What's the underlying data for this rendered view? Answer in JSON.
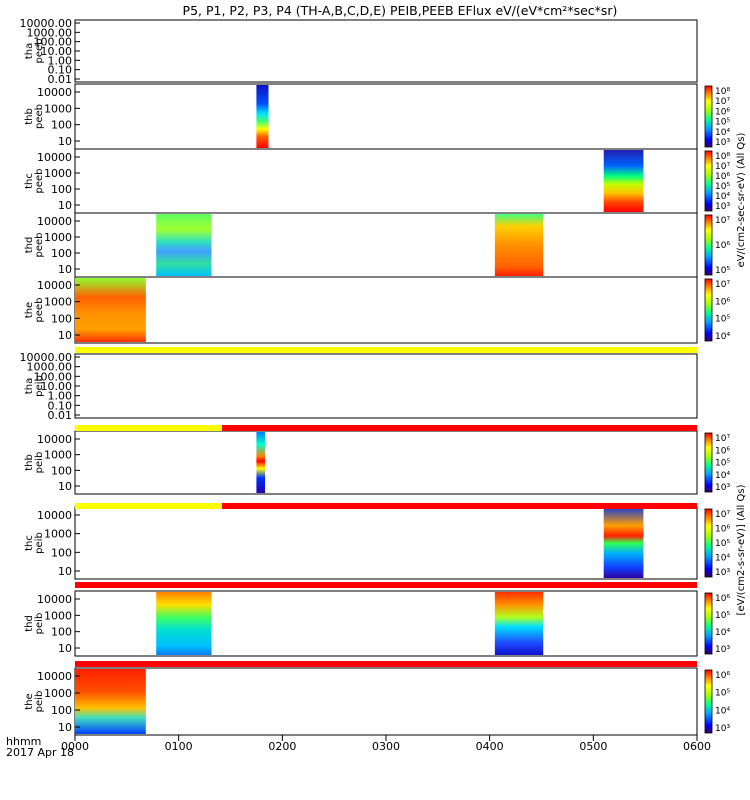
{
  "title": "P5, P1, P2, P3, P4 (TH-A,B,C,D,E) PEIB,PEEB EFlux eV/(eV*cm²*sec*sr)",
  "colorbar_label_top": "eV/(cm2-sec-sr-eV) (All Qs)",
  "colorbar_label_bottom": "[eV/(cm2-s-sr-eV)] (All Qs)",
  "time_axis": {
    "label_line1": "hhmm",
    "label_line2": "2017 Apr 18",
    "ticks": [
      "0000",
      "0100",
      "0200",
      "0300",
      "0400",
      "0500",
      "0600"
    ]
  },
  "chart_data": [
    {
      "type": "heatmap",
      "panel": "tha peeb",
      "probe": "tha",
      "instrument": "peeb",
      "ylabel": "tha\npeeb",
      "scale": "log",
      "yticks": [
        "10000.00",
        "1000.00",
        "100.00",
        "10.00",
        "1.00",
        "0.10",
        "0.01"
      ],
      "blocks": [],
      "colorbar": null
    },
    {
      "type": "heatmap",
      "panel": "thb peeb",
      "probe": "thb",
      "instrument": "peeb",
      "ylabel": "thb\npeeb",
      "scale": "log",
      "yticks": [
        "10000",
        "1000",
        "100",
        "10"
      ],
      "blocks": [
        {
          "start": "0145",
          "end": "0152"
        }
      ],
      "colorbar": [
        "10⁸",
        "10⁷",
        "10⁶",
        "10⁵",
        "10⁴",
        "10³"
      ]
    },
    {
      "type": "heatmap",
      "panel": "thc peeb",
      "probe": "thc",
      "instrument": "peeb",
      "ylabel": "thc\npeeb",
      "scale": "log",
      "yticks": [
        "10000",
        "1000",
        "100",
        "10"
      ],
      "blocks": [
        {
          "start": "0506",
          "end": "0529"
        }
      ],
      "colorbar": [
        "10⁸",
        "10⁷",
        "10⁶",
        "10⁵",
        "10⁴",
        "10³"
      ]
    },
    {
      "type": "heatmap",
      "panel": "thd peeb",
      "probe": "thd",
      "instrument": "peeb",
      "ylabel": "thd\npeeb",
      "scale": "log",
      "yticks": [
        "10000",
        "1000",
        "100",
        "10"
      ],
      "blocks": [
        {
          "start": "0047",
          "end": "0119"
        },
        {
          "start": "0403",
          "end": "0431"
        }
      ],
      "colorbar": [
        "10⁷",
        "10⁶",
        "10⁵"
      ]
    },
    {
      "type": "heatmap",
      "panel": "the peeb",
      "probe": "the",
      "instrument": "peeb",
      "ylabel": "the\npeeb",
      "scale": "log",
      "yticks": [
        "10000",
        "1000",
        "100",
        "10"
      ],
      "blocks": [
        {
          "start": "0000",
          "end": "0041"
        }
      ],
      "colorbar": [
        "10⁷",
        "10⁶",
        "10⁵",
        "10⁴"
      ]
    },
    {
      "type": "heatmap",
      "panel": "tha peib",
      "probe": "tha",
      "instrument": "peib",
      "ylabel": "tha\npeib",
      "scale": "log",
      "yticks": [
        "10000.00",
        "1000.00",
        "100.00",
        "10.00",
        "1.00",
        "0.10",
        "0.01"
      ],
      "blocks": [],
      "colorbar": null
    },
    {
      "type": "heatmap",
      "panel": "thb peib",
      "probe": "thb",
      "instrument": "peib",
      "ylabel": "thb\npeib",
      "scale": "log",
      "yticks": [
        "10000",
        "1000",
        "100",
        "10"
      ],
      "blocks": [
        {
          "start": "0145",
          "end": "0150"
        }
      ],
      "colorbar": [
        "10⁷",
        "10⁶",
        "10⁵",
        "10⁴",
        "10³"
      ]
    },
    {
      "type": "heatmap",
      "panel": "thc peib",
      "probe": "thc",
      "instrument": "peib",
      "ylabel": "thc\npeib",
      "scale": "log",
      "yticks": [
        "10000",
        "1000",
        "100",
        "10"
      ],
      "blocks": [
        {
          "start": "0506",
          "end": "0529"
        }
      ],
      "colorbar": [
        "10⁷",
        "10⁶",
        "10⁵",
        "10⁴",
        "10³"
      ]
    },
    {
      "type": "heatmap",
      "panel": "thd peib",
      "probe": "thd",
      "instrument": "peib",
      "ylabel": "thd\npeib",
      "scale": "log",
      "yticks": [
        "10000",
        "1000",
        "100",
        "10"
      ],
      "blocks": [
        {
          "start": "0047",
          "end": "0119"
        },
        {
          "start": "0403",
          "end": "0431"
        }
      ],
      "colorbar": [
        "10⁶",
        "10⁵",
        "10⁴",
        "10³"
      ]
    },
    {
      "type": "heatmap",
      "panel": "the peib",
      "probe": "the",
      "instrument": "peib",
      "ylabel": "the\npeib",
      "scale": "log",
      "yticks": [
        "10000",
        "1000",
        "100",
        "10"
      ],
      "blocks": [
        {
          "start": "0000",
          "end": "0041"
        }
      ],
      "colorbar": [
        "10⁶",
        "10⁵",
        "10⁴",
        "10³"
      ]
    }
  ]
}
